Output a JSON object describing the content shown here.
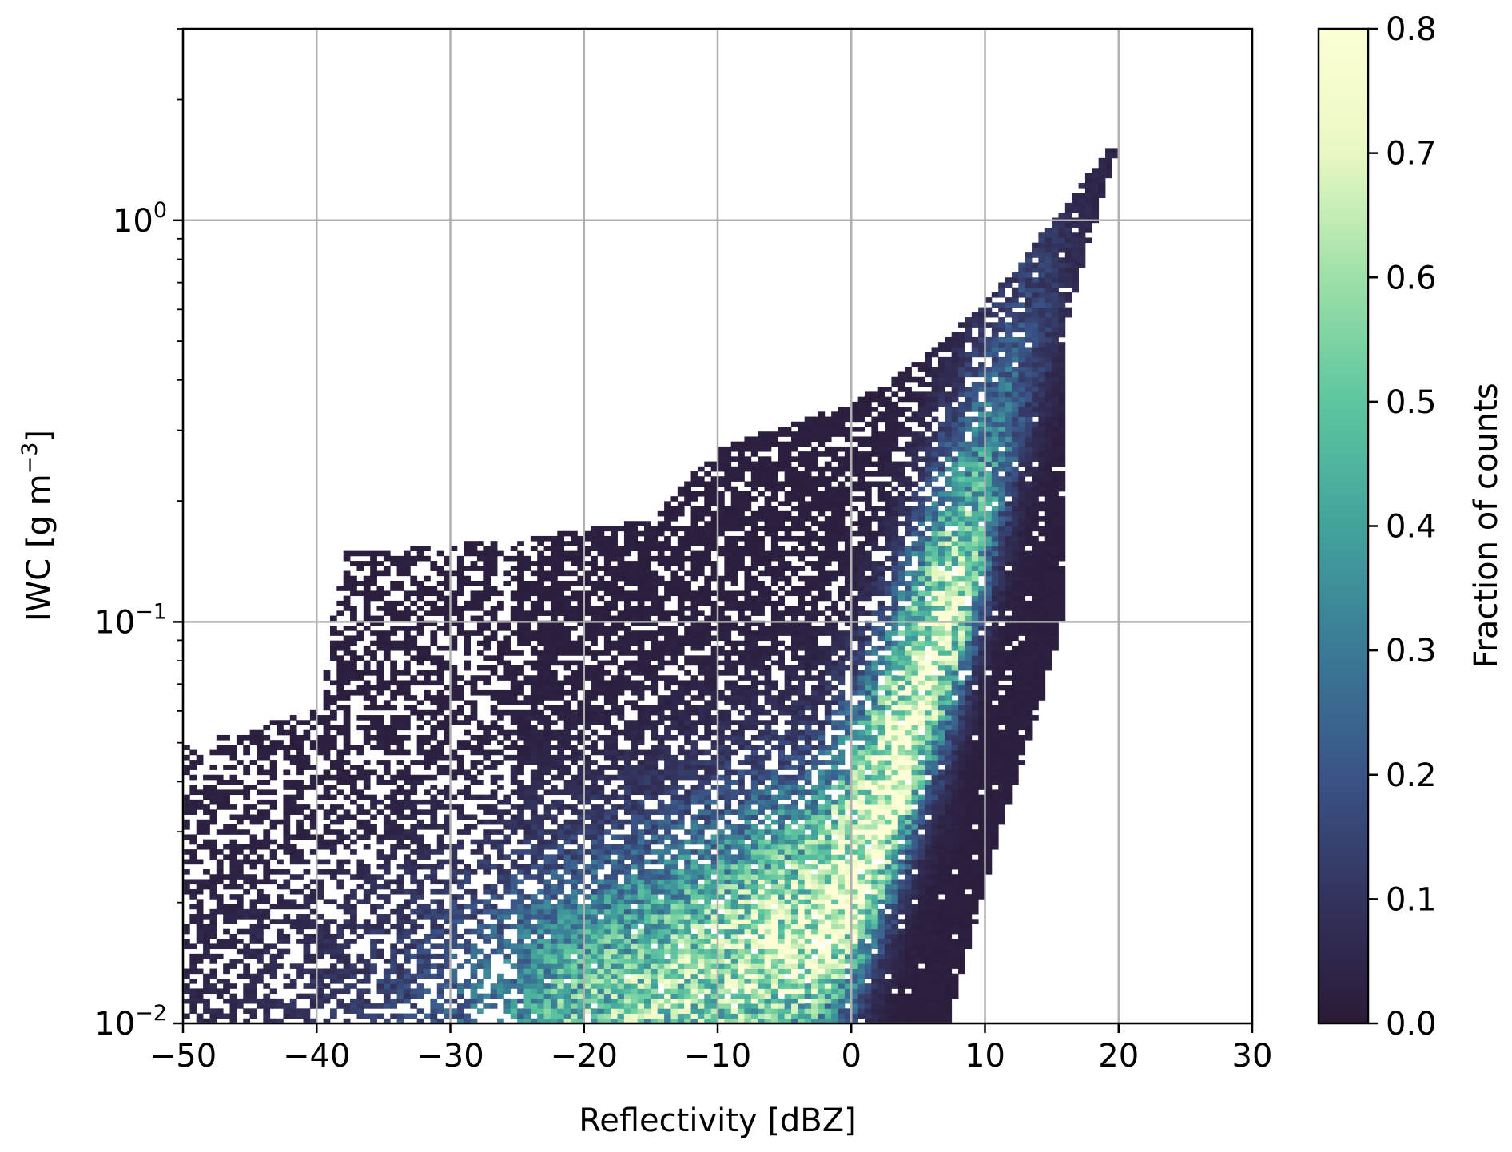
{
  "chart_data": {
    "type": "heatmap",
    "title": "",
    "xlabel": "Reflectivity [dBZ]",
    "ylabel": {
      "base": "IWC [g m",
      "sup": "−3",
      "close": "]"
    },
    "xlim": [
      -50,
      30
    ],
    "ylim": [
      0.01,
      3
    ],
    "yscale": "log",
    "grid": true,
    "x_ticks": [
      -50,
      -40,
      -30,
      -20,
      -10,
      0,
      10,
      20,
      30
    ],
    "x_tick_labels": [
      "−50",
      "−40",
      "−30",
      "−20",
      "−10",
      "0",
      "10",
      "20",
      "30"
    ],
    "y_ticks": [
      {
        "value": 0.01,
        "base": "10",
        "exp": "−2"
      },
      {
        "value": 0.1,
        "base": "10",
        "exp": "−1"
      },
      {
        "value": 1,
        "base": "10",
        "exp": "0"
      }
    ],
    "colorbar": {
      "label": "Fraction of counts",
      "min": 0.0,
      "max": 0.8,
      "ticks": [
        0.0,
        0.1,
        0.2,
        0.3,
        0.4,
        0.5,
        0.6,
        0.7,
        0.8
      ],
      "tick_labels": [
        "0.0",
        "0.1",
        "0.2",
        "0.3",
        "0.4",
        "0.5",
        "0.6",
        "0.7",
        "0.8"
      ],
      "colormap": [
        "#2a1a37",
        "#33335d",
        "#3a5487",
        "#3a7a96",
        "#42a39c",
        "#5dc69f",
        "#9ee0a8",
        "#e9f8c3",
        "#fdfed5"
      ]
    },
    "distribution": {
      "description_free": true,
      "ridge": [
        {
          "x": -22,
          "y": 0.01,
          "value": 0.45
        },
        {
          "x": -10,
          "y": 0.013,
          "value": 0.6
        },
        {
          "x": -3,
          "y": 0.016,
          "value": 0.7
        },
        {
          "x": 0,
          "y": 0.022,
          "value": 0.78
        },
        {
          "x": 3,
          "y": 0.04,
          "value": 0.78
        },
        {
          "x": 6,
          "y": 0.08,
          "value": 0.7
        },
        {
          "x": 8,
          "y": 0.12,
          "value": 0.6
        },
        {
          "x": 10,
          "y": 0.2,
          "value": 0.35
        },
        {
          "x": 13,
          "y": 0.45,
          "value": 0.15
        },
        {
          "x": 16,
          "y": 0.8,
          "value": 0.06
        },
        {
          "x": 18,
          "y": 1.2,
          "value": 0.03
        }
      ]
    }
  }
}
